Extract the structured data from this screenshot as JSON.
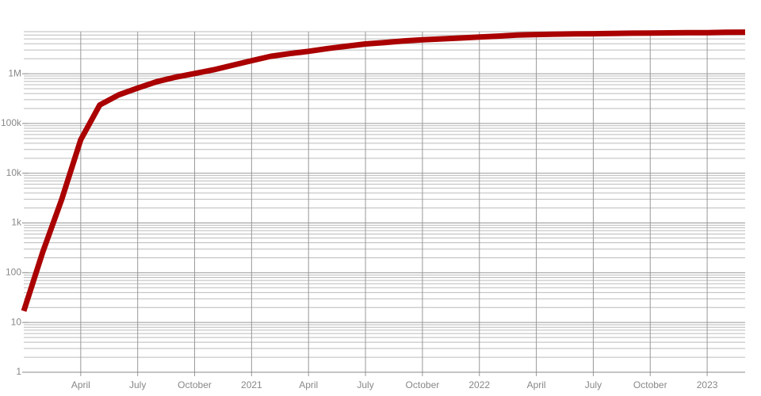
{
  "chart_data": {
    "type": "line",
    "log_y": true,
    "grid": true,
    "minor_grid": true,
    "x": [
      "2020-01",
      "2020-02",
      "2020-03",
      "2020-04",
      "2020-05",
      "2020-06",
      "2020-07",
      "2020-08",
      "2020-09",
      "2020-10",
      "2020-11",
      "2020-12",
      "2021-01",
      "2021-02",
      "2021-03",
      "2021-04",
      "2021-05",
      "2021-06",
      "2021-07",
      "2021-08",
      "2021-09",
      "2021-10",
      "2021-11",
      "2021-12",
      "2022-01",
      "2022-02",
      "2022-03",
      "2022-04",
      "2022-05",
      "2022-06",
      "2022-07",
      "2022-08",
      "2022-09",
      "2022-10",
      "2022-11",
      "2022-12",
      "2023-01",
      "2023-02",
      "2023-03"
    ],
    "series": [
      {
        "color": "#aa0000",
        "values": [
          17,
          260,
          3000,
          47000,
          235000,
          375000,
          515000,
          690000,
          855000,
          1010000,
          1200000,
          1480000,
          1830000,
          2240000,
          2540000,
          2820000,
          3210000,
          3570000,
          3960000,
          4220000,
          4560000,
          4810000,
          5010000,
          5220000,
          5450000,
          5700000,
          5970000,
          6140000,
          6250000,
          6310000,
          6370000,
          6440000,
          6520000,
          6580000,
          6630000,
          6670000,
          6710000,
          6800000,
          6860000
        ]
      }
    ],
    "xlim": [
      "2020-01",
      "2023-03"
    ],
    "xticks": [
      {
        "value": "2020-04",
        "label": "April"
      },
      {
        "value": "2020-07",
        "label": "July"
      },
      {
        "value": "2020-10",
        "label": "October"
      },
      {
        "value": "2021-01",
        "label": "2021"
      },
      {
        "value": "2021-04",
        "label": "April"
      },
      {
        "value": "2021-07",
        "label": "July"
      },
      {
        "value": "2021-10",
        "label": "October"
      },
      {
        "value": "2022-01",
        "label": "2022"
      },
      {
        "value": "2022-04",
        "label": "April"
      },
      {
        "value": "2022-07",
        "label": "July"
      },
      {
        "value": "2022-10",
        "label": "October"
      },
      {
        "value": "2023-01",
        "label": "2023"
      }
    ],
    "ylim": [
      1,
      7000000
    ],
    "yticks": [
      1,
      10,
      100,
      {
        "value": 1000,
        "label": "1k"
      },
      {
        "value": 10000,
        "label": "10k"
      },
      {
        "value": 100000,
        "label": "100k"
      },
      {
        "value": 1000000,
        "label": "1M"
      }
    ]
  }
}
